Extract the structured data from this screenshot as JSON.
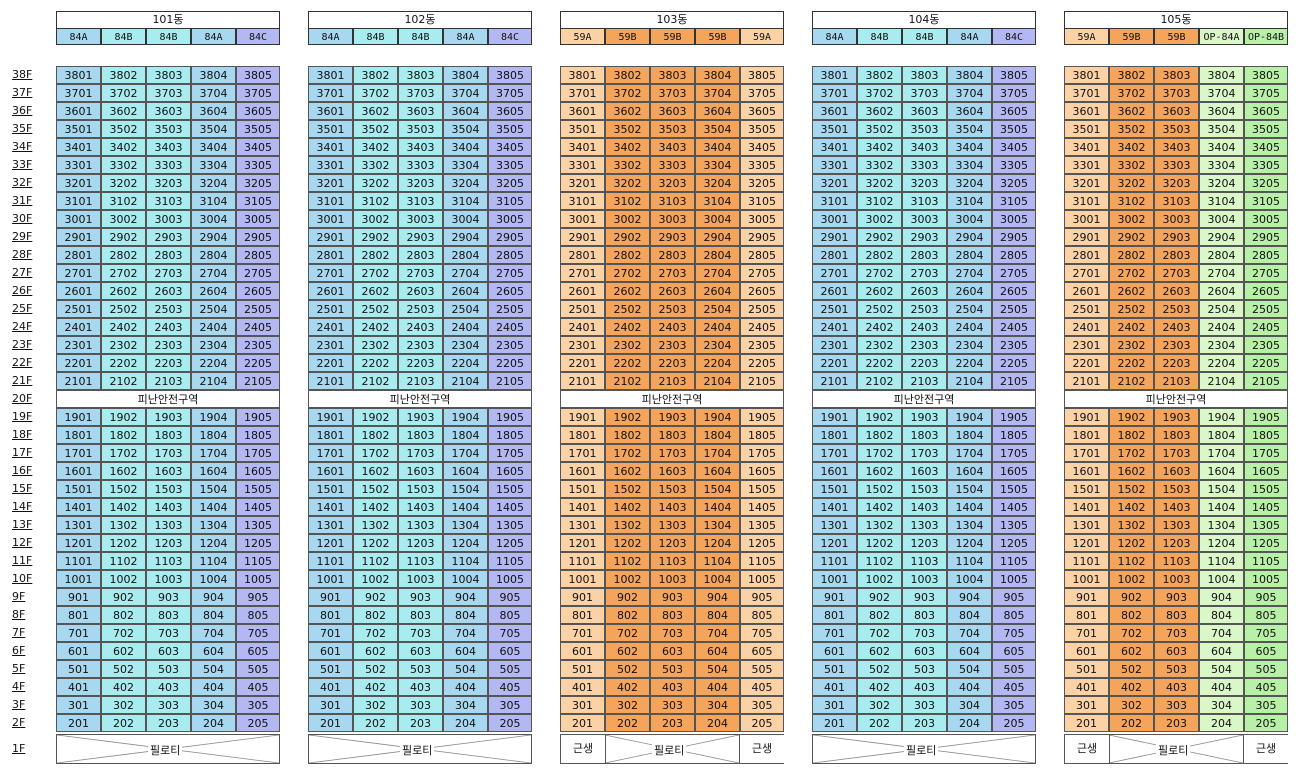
{
  "floor_labels": [
    "38F",
    "37F",
    "36F",
    "35F",
    "34F",
    "33F",
    "32F",
    "31F",
    "30F",
    "29F",
    "28F",
    "27F",
    "26F",
    "25F",
    "24F",
    "23F",
    "22F",
    "21F",
    "20F",
    "19F",
    "18F",
    "17F",
    "16F",
    "15F",
    "14F",
    "13F",
    "12F",
    "11F",
    "10F",
    "9F",
    "8F",
    "7F",
    "6F",
    "5F",
    "4F",
    "3F",
    "2F",
    "1F"
  ],
  "refuge_label": "피난안전구역",
  "pilotis_label": "필로티",
  "shop_label": "근생",
  "colors": {
    "84A": "#a7d8f0",
    "84B": "#a8ecf0",
    "84C": "#b3b7f2",
    "59A": "#fbd2a6",
    "59B": "#f5a45c",
    "OP-84A": "#daf7c8",
    "OP-84B": "#b8f0a8"
  },
  "buildings": [
    {
      "name": "101동",
      "types": [
        "84A",
        "84B",
        "84B",
        "84A",
        "84C"
      ],
      "shops": false
    },
    {
      "name": "102동",
      "types": [
        "84A",
        "84B",
        "84B",
        "84A",
        "84C"
      ],
      "shops": false
    },
    {
      "name": "103동",
      "types": [
        "59A",
        "59B",
        "59B",
        "59B",
        "59A"
      ],
      "shops": true
    },
    {
      "name": "104동",
      "types": [
        "84A",
        "84B",
        "84B",
        "84A",
        "84C"
      ],
      "shops": false
    },
    {
      "name": "105동",
      "types": [
        "59A",
        "59B",
        "59B",
        "OP-84A",
        "OP-84B"
      ],
      "shops": true
    }
  ]
}
